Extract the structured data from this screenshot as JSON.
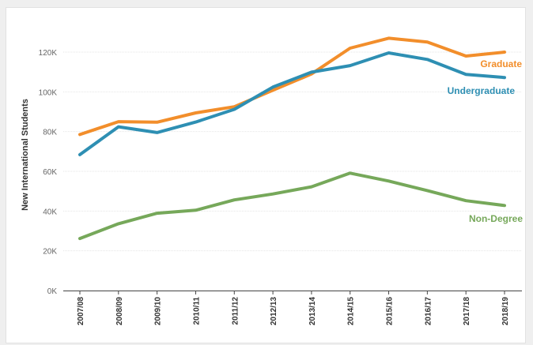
{
  "chart_data": {
    "type": "line",
    "title": "",
    "xlabel": "",
    "ylabel": "New International Students",
    "categories": [
      "2007/08",
      "2008/09",
      "2009/10",
      "2010/11",
      "2011/12",
      "2012/13",
      "2013/14",
      "2014/15",
      "2015/16",
      "2016/17",
      "2017/18",
      "2018/19"
    ],
    "yticks": [
      "0K",
      "20K",
      "40K",
      "60K",
      "80K",
      "100K",
      "120K"
    ],
    "ylim": [
      0,
      130000
    ],
    "grid": true,
    "legend": "inline labels at line ends",
    "series": [
      {
        "name": "Graduate",
        "color": "#f28e2b",
        "values": [
          78500,
          85000,
          84700,
          89400,
          92500,
          100800,
          109000,
          122000,
          127000,
          125100,
          118000,
          120000
        ]
      },
      {
        "name": "Undergraduate",
        "color": "#2e8fb3",
        "values": [
          68400,
          82400,
          79500,
          84800,
          91200,
          102400,
          109900,
          113200,
          119600,
          116300,
          108800,
          107200
        ]
      },
      {
        "name": "Non-Degree",
        "color": "#76a85a",
        "values": [
          26200,
          33600,
          38900,
          40400,
          45600,
          48600,
          52200,
          59100,
          55100,
          50300,
          45200,
          42800
        ]
      }
    ]
  }
}
